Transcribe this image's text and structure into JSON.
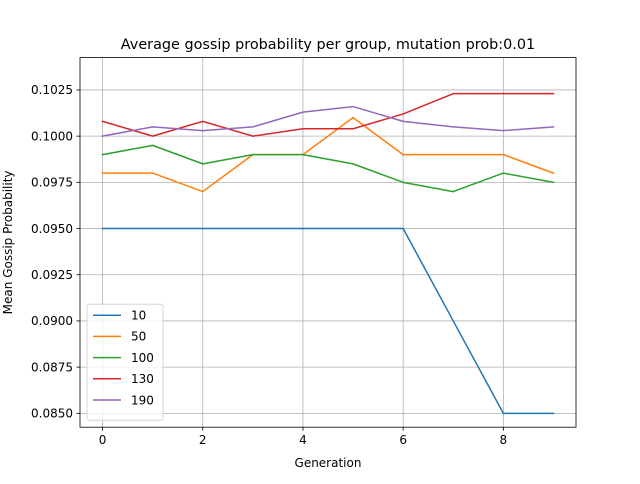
{
  "chart_data": {
    "type": "line",
    "title": "Average gossip probability per group, mutation prob:0.01",
    "xlabel": "Generation",
    "ylabel": "Mean Gossip Probability",
    "xlim": [
      -0.45,
      9.45
    ],
    "ylim": [
      0.08425,
      0.10425
    ],
    "xticks": [
      0,
      2,
      4,
      6,
      8
    ],
    "xtick_labels": [
      "0",
      "2",
      "4",
      "6",
      "8"
    ],
    "yticks": [
      0.085,
      0.0875,
      0.09,
      0.0925,
      0.095,
      0.0975,
      0.1,
      0.1025
    ],
    "ytick_labels": [
      "0.0850",
      "0.0875",
      "0.0900",
      "0.0925",
      "0.0950",
      "0.0975",
      "0.1000",
      "0.1025"
    ],
    "grid": true,
    "legend_position": "lower-left",
    "x": [
      0,
      1,
      2,
      3,
      4,
      5,
      6,
      7,
      8,
      9
    ],
    "series": [
      {
        "name": "10",
        "color": "#1f77b4",
        "values": [
          0.095,
          0.095,
          0.095,
          0.095,
          0.095,
          0.095,
          0.095,
          0.09,
          0.085,
          0.085
        ]
      },
      {
        "name": "50",
        "color": "#ff7f0e",
        "values": [
          0.098,
          0.098,
          0.097,
          0.099,
          0.099,
          0.101,
          0.099,
          0.099,
          0.099,
          0.098
        ]
      },
      {
        "name": "100",
        "color": "#2ca02c",
        "values": [
          0.099,
          0.0995,
          0.0985,
          0.099,
          0.099,
          0.0985,
          0.0975,
          0.097,
          0.098,
          0.0975
        ]
      },
      {
        "name": "130",
        "color": "#d62728",
        "values": [
          0.1008,
          0.1,
          0.1008,
          0.1,
          0.1004,
          0.1004,
          0.1012,
          0.1023,
          0.1023,
          0.1023
        ]
      },
      {
        "name": "190",
        "color": "#9467bd",
        "values": [
          0.1,
          0.1005,
          0.1003,
          0.1005,
          0.1013,
          0.1016,
          0.1008,
          0.1005,
          0.1003,
          0.1005
        ]
      }
    ]
  }
}
